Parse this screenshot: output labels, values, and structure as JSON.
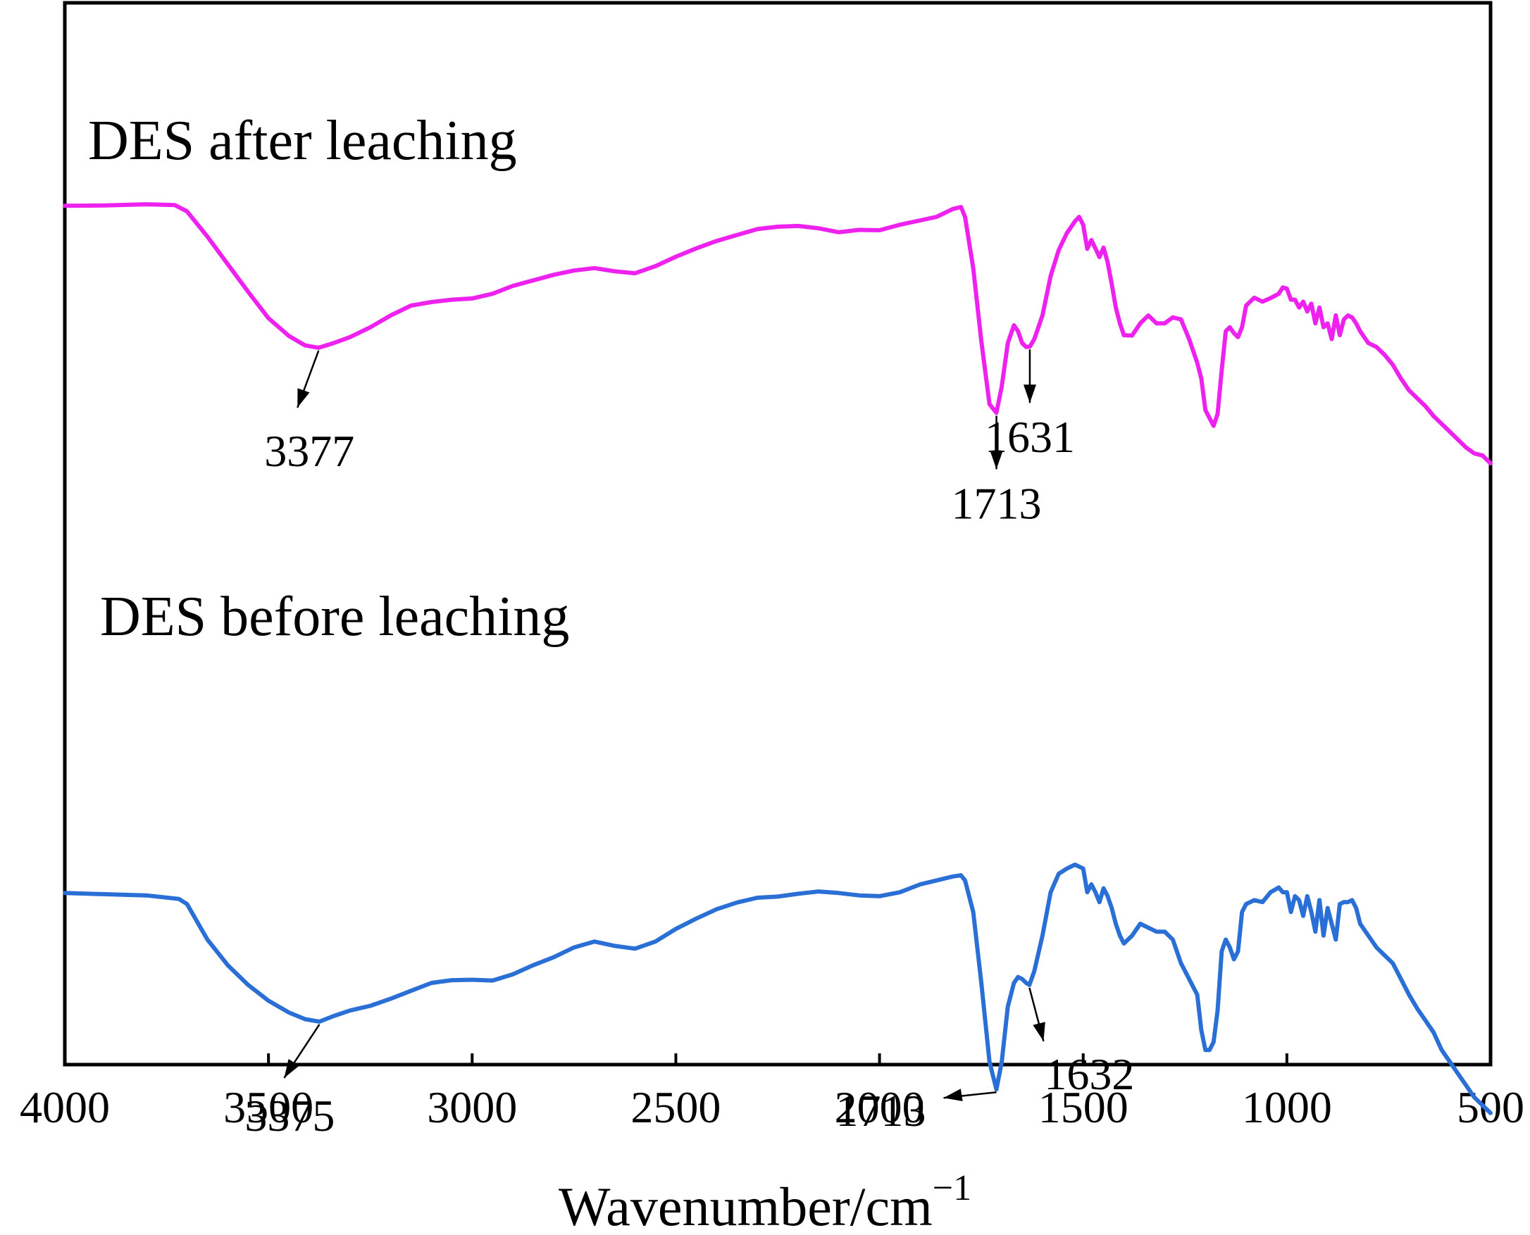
{
  "chart_data": {
    "type": "line",
    "xlabel": "Wavenumber/cm",
    "xlabel_superscript": "−1",
    "xlim": [
      4000,
      500
    ],
    "x_reversed": true,
    "yaxis_visible": false,
    "xticks": [
      "4000",
      "3500",
      "3000",
      "2500",
      "2000",
      "1500",
      "1000",
      "500"
    ],
    "series": [
      {
        "name": "DES after leaching",
        "color": "#ee22ee",
        "x": [
          4000,
          3900,
          3800,
          3730,
          3700,
          3650,
          3600,
          3550,
          3500,
          3450,
          3410,
          3377,
          3340,
          3300,
          3250,
          3200,
          3150,
          3100,
          3050,
          3000,
          2950,
          2900,
          2850,
          2800,
          2750,
          2700,
          2650,
          2600,
          2550,
          2500,
          2450,
          2400,
          2350,
          2300,
          2250,
          2200,
          2150,
          2100,
          2050,
          2000,
          1950,
          1900,
          1860,
          1820,
          1800,
          1790,
          1770,
          1750,
          1730,
          1713,
          1700,
          1685,
          1670,
          1660,
          1650,
          1640,
          1631,
          1620,
          1600,
          1580,
          1560,
          1540,
          1520,
          1510,
          1500,
          1490,
          1480,
          1470,
          1460,
          1450,
          1440,
          1430,
          1420,
          1410,
          1400,
          1380,
          1360,
          1340,
          1320,
          1300,
          1280,
          1260,
          1240,
          1220,
          1210,
          1200,
          1190,
          1180,
          1170,
          1160,
          1150,
          1140,
          1130,
          1120,
          1110,
          1100,
          1080,
          1060,
          1040,
          1020,
          1010,
          1000,
          990,
          980,
          970,
          960,
          950,
          940,
          930,
          920,
          910,
          900,
          890,
          880,
          870,
          860,
          850,
          840,
          830,
          820,
          800,
          780,
          760,
          740,
          720,
          700,
          680,
          660,
          640,
          620,
          600,
          580,
          560,
          540,
          520,
          500
        ],
        "y": [
          0.978,
          0.979,
          0.982,
          0.98,
          0.964,
          0.9,
          0.83,
          0.76,
          0.693,
          0.648,
          0.624,
          0.618,
          0.63,
          0.645,
          0.67,
          0.7,
          0.725,
          0.734,
          0.74,
          0.743,
          0.755,
          0.775,
          0.789,
          0.803,
          0.814,
          0.82,
          0.812,
          0.807,
          0.825,
          0.849,
          0.87,
          0.889,
          0.904,
          0.919,
          0.925,
          0.927,
          0.921,
          0.911,
          0.917,
          0.916,
          0.93,
          0.941,
          0.95,
          0.97,
          0.975,
          0.95,
          0.82,
          0.635,
          0.475,
          0.453,
          0.52,
          0.63,
          0.675,
          0.66,
          0.63,
          0.62,
          0.621,
          0.64,
          0.7,
          0.8,
          0.866,
          0.909,
          0.939,
          0.95,
          0.93,
          0.869,
          0.891,
          0.87,
          0.848,
          0.872,
          0.835,
          0.78,
          0.72,
          0.68,
          0.65,
          0.649,
          0.68,
          0.7,
          0.68,
          0.68,
          0.695,
          0.69,
          0.64,
          0.58,
          0.54,
          0.46,
          0.44,
          0.42,
          0.45,
          0.56,
          0.66,
          0.67,
          0.655,
          0.645,
          0.67,
          0.725,
          0.745,
          0.735,
          0.744,
          0.755,
          0.771,
          0.768,
          0.74,
          0.74,
          0.72,
          0.735,
          0.71,
          0.73,
          0.68,
          0.72,
          0.67,
          0.68,
          0.64,
          0.7,
          0.65,
          0.69,
          0.7,
          0.695,
          0.68,
          0.66,
          0.63,
          0.62,
          0.6,
          0.575,
          0.54,
          0.51,
          0.49,
          0.47,
          0.445,
          0.425,
          0.405,
          0.385,
          0.365,
          0.35,
          0.345,
          0.325
        ]
      },
      {
        "name": "DES before leaching",
        "color": "#2a6fd6",
        "x": [
          4000,
          3900,
          3800,
          3720,
          3700,
          3650,
          3600,
          3550,
          3500,
          3450,
          3410,
          3375,
          3340,
          3300,
          3250,
          3200,
          3150,
          3100,
          3050,
          3000,
          2950,
          2900,
          2850,
          2800,
          2750,
          2700,
          2650,
          2600,
          2550,
          2500,
          2450,
          2400,
          2350,
          2300,
          2250,
          2200,
          2150,
          2100,
          2050,
          2000,
          1950,
          1900,
          1860,
          1820,
          1800,
          1790,
          1770,
          1750,
          1730,
          1713,
          1700,
          1685,
          1670,
          1660,
          1650,
          1640,
          1632,
          1620,
          1600,
          1580,
          1560,
          1540,
          1520,
          1510,
          1500,
          1490,
          1480,
          1470,
          1460,
          1450,
          1440,
          1430,
          1420,
          1410,
          1400,
          1380,
          1360,
          1340,
          1320,
          1300,
          1280,
          1260,
          1240,
          1220,
          1210,
          1200,
          1190,
          1180,
          1170,
          1160,
          1150,
          1140,
          1130,
          1120,
          1110,
          1100,
          1080,
          1060,
          1040,
          1020,
          1010,
          1000,
          990,
          980,
          970,
          960,
          950,
          940,
          930,
          920,
          910,
          900,
          890,
          880,
          870,
          860,
          850,
          840,
          830,
          820,
          800,
          780,
          760,
          740,
          720,
          700,
          680,
          660,
          640,
          620,
          600,
          580,
          560,
          540,
          520,
          500
        ],
        "y": [
          0.378,
          0.375,
          0.372,
          0.363,
          0.35,
          0.26,
          0.195,
          0.145,
          0.105,
          0.075,
          0.058,
          0.052,
          0.066,
          0.08,
          0.092,
          0.11,
          0.13,
          0.15,
          0.157,
          0.158,
          0.156,
          0.172,
          0.195,
          0.215,
          0.24,
          0.255,
          0.244,
          0.237,
          0.255,
          0.287,
          0.313,
          0.337,
          0.354,
          0.366,
          0.369,
          0.376,
          0.382,
          0.378,
          0.372,
          0.37,
          0.38,
          0.4,
          0.41,
          0.42,
          0.423,
          0.41,
          0.33,
          0.15,
          -0.05,
          -0.12,
          -0.05,
          0.09,
          0.15,
          0.165,
          0.16,
          0.15,
          0.145,
          0.18,
          0.27,
          0.38,
          0.427,
          0.44,
          0.45,
          0.445,
          0.44,
          0.38,
          0.4,
          0.38,
          0.355,
          0.39,
          0.37,
          0.34,
          0.3,
          0.27,
          0.25,
          0.27,
          0.3,
          0.29,
          0.28,
          0.28,
          0.26,
          0.2,
          0.16,
          0.12,
          0.03,
          -0.02,
          -0.02,
          0.0,
          0.08,
          0.23,
          0.26,
          0.24,
          0.21,
          0.23,
          0.33,
          0.35,
          0.36,
          0.355,
          0.38,
          0.392,
          0.38,
          0.38,
          0.33,
          0.37,
          0.36,
          0.32,
          0.37,
          0.33,
          0.28,
          0.36,
          0.27,
          0.34,
          0.3,
          0.26,
          0.35,
          0.355,
          0.355,
          0.36,
          0.34,
          0.3,
          0.27,
          0.24,
          0.22,
          0.2,
          0.16,
          0.12,
          0.085,
          0.055,
          0.025,
          -0.02,
          -0.05,
          -0.08,
          -0.11,
          -0.14,
          -0.16,
          -0.18
        ]
      }
    ],
    "annotations": [
      {
        "series": 0,
        "text": "3377",
        "at": 3377
      },
      {
        "series": 0,
        "text": "1713",
        "at": 1713
      },
      {
        "series": 0,
        "text": "1631",
        "at": 1631
      },
      {
        "series": 1,
        "text": "3375",
        "at": 3375
      },
      {
        "series": 1,
        "text": "1713",
        "at": 1713
      },
      {
        "series": 1,
        "text": "1632",
        "at": 1632
      }
    ]
  }
}
